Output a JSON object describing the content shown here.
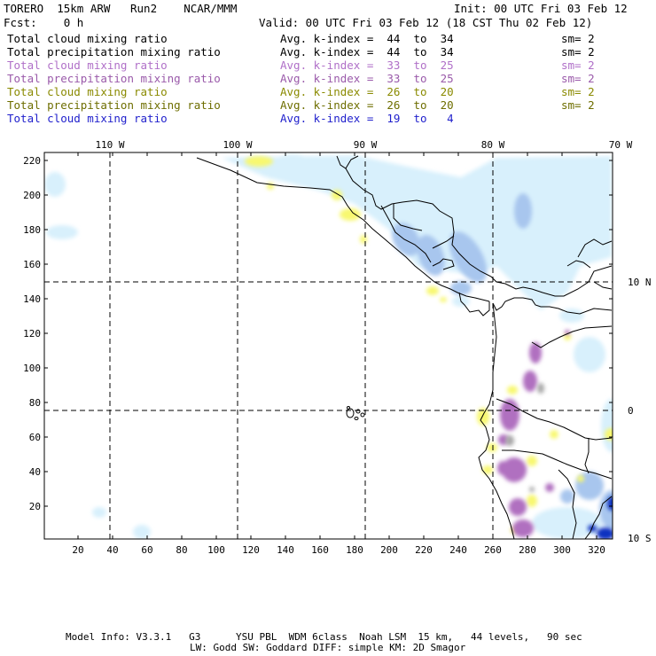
{
  "header": {
    "model": "TORERO  15km ARW   Run2    NCAR/MMM",
    "init": "Init: 00 UTC Fri 03 Feb 12",
    "fcst": "Fcst:    0 h",
    "valid": "Valid: 00 UTC Fri 03 Feb 12 (18 CST Thu 02 Feb 12)"
  },
  "legend": [
    {
      "name": "Total cloud mixing ratio",
      "kindex": "Avg. k-index =  44  to  34",
      "sm": "sm= 2",
      "color": "#000000"
    },
    {
      "name": "Total precipitation mixing ratio",
      "kindex": "Avg. k-index =  44  to  34",
      "sm": "sm= 2",
      "color": "#000000"
    },
    {
      "name": "Total cloud mixing ratio",
      "kindex": "Avg. k-index =  33  to  25",
      "sm": "sm= 2",
      "color": "#b070c8"
    },
    {
      "name": "Total precipitation mixing ratio",
      "kindex": "Avg. k-index =  33  to  25",
      "sm": "sm= 2",
      "color": "#9a5aaa"
    },
    {
      "name": "Total cloud mixing ratio",
      "kindex": "Avg. k-index =  26  to  20",
      "sm": "sm= 2",
      "color": "#8a8a00"
    },
    {
      "name": "Total precipitation mixing ratio",
      "kindex": "Avg. k-index =  26  to  20",
      "sm": "sm= 2",
      "color": "#6e6e00"
    },
    {
      "name": "Total cloud mixing ratio",
      "kindex": "Avg. k-index =  19  to   4",
      "sm": "",
      "color": "#1f1fcc"
    }
  ],
  "axes": {
    "lon_labels": [
      "110 W",
      "100 W",
      "90 W",
      "80 W",
      "70 W"
    ],
    "lat_labels": [
      "10 N",
      "0",
      "10 S"
    ],
    "y_ticks": [
      "220",
      "200",
      "180",
      "160",
      "140",
      "120",
      "100",
      "80",
      "60",
      "40",
      "20"
    ],
    "x_ticks": [
      "20",
      "40",
      "60",
      "80",
      "100",
      "120",
      "140",
      "160",
      "180",
      "200",
      "220",
      "240",
      "260",
      "280",
      "300",
      "320"
    ]
  },
  "footer": {
    "line1": "Model Info: V3.3.1   G3      YSU PBL  WDM 6class  Noah LSM  15 km,   44 levels,   90 sec",
    "line2": "LW: Godd SW: Goddard DIFF: simple KM: 2D Smagor"
  },
  "colors": {
    "light_cloud": "#d8f0fc",
    "blue_cloud": "#a8c8ee",
    "deep_blue": "#1030c0",
    "yellow": "#f8f870",
    "purple": "#b070c0",
    "gray": "#a8a8a8"
  }
}
